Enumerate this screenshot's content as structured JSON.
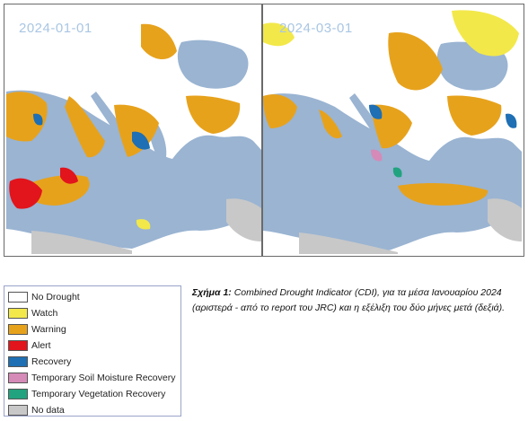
{
  "maps": {
    "left_date": "2024-01-01",
    "right_date": "2024-03-01"
  },
  "legend": {
    "items": [
      {
        "label": "No Drought",
        "color": "#ffffff",
        "icon": "swatch-no-drought"
      },
      {
        "label": "Watch",
        "color": "#f2e84a",
        "icon": "swatch-watch"
      },
      {
        "label": "Warning",
        "color": "#e7a21c",
        "icon": "swatch-warning"
      },
      {
        "label": "Alert",
        "color": "#e2141c",
        "icon": "swatch-alert"
      },
      {
        "label": "Recovery",
        "color": "#1e6fb3",
        "icon": "swatch-recovery"
      },
      {
        "label": "Temporary Soil Moisture Recovery",
        "color": "#d58ab8",
        "icon": "swatch-soil"
      },
      {
        "label": "Temporary Vegetation Recovery",
        "color": "#21a37f",
        "icon": "swatch-vegetation"
      },
      {
        "label": "No data",
        "color": "#c8c8c8",
        "icon": "swatch-no-data"
      }
    ]
  },
  "caption": {
    "head": "Σχήμα 1:",
    "text": "Combined Drought Indicator (CDI), για τα μέσα Ιανουαρίου 2024 (αριστερά - από το report του JRC) και η εξέλιξη του δύο μήνες μετά (δεξιά)."
  },
  "colors": {
    "sea": "#9ab4d2",
    "land_no_drought": "#ffffff",
    "frame": "#6a6a6a"
  }
}
